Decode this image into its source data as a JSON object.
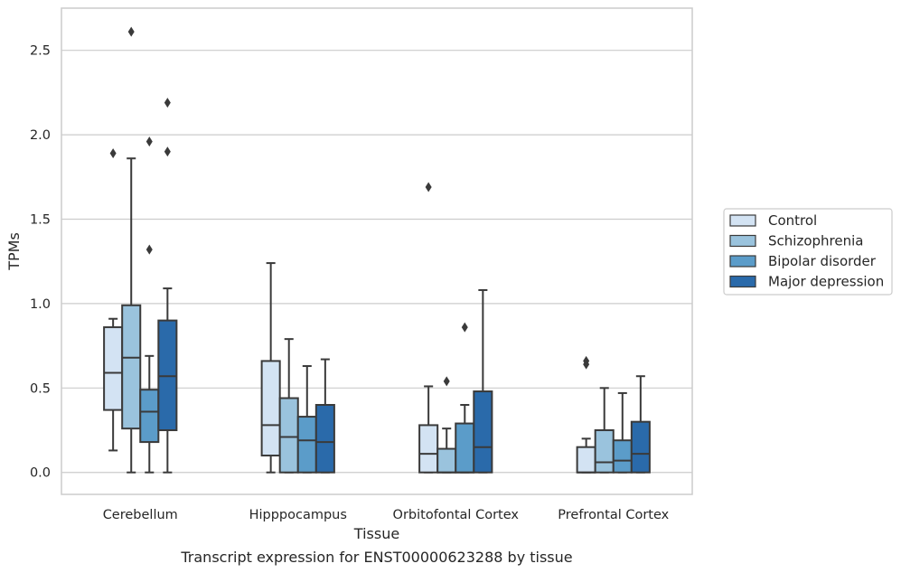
{
  "chart_data": {
    "type": "box",
    "title": "",
    "caption": "Transcript expression for ENST00000623288 by tissue",
    "xlabel": "Tissue",
    "ylabel": "TPMs",
    "ylim": [
      -0.13,
      2.75
    ],
    "yticks": [
      "0.0",
      "0.5",
      "1.0",
      "1.5",
      "2.0",
      "2.5"
    ],
    "grid": true,
    "legend_position": "right",
    "categories": [
      "Cerebellum",
      "Hipppocampus",
      "Orbitofontal Cortex",
      "Prefrontal Cortex"
    ],
    "series": [
      {
        "name": "Control",
        "color": "#d3e3f3",
        "boxes": [
          {
            "whisker_low": 0.13,
            "q1": 0.37,
            "median": 0.59,
            "q3": 0.86,
            "whisker_high": 0.91,
            "outliers": [
              1.89
            ]
          },
          {
            "whisker_low": 0.0,
            "q1": 0.1,
            "median": 0.28,
            "q3": 0.66,
            "whisker_high": 1.24,
            "outliers": []
          },
          {
            "whisker_low": 0.0,
            "q1": 0.0,
            "median": 0.11,
            "q3": 0.28,
            "whisker_high": 0.51,
            "outliers": [
              1.69
            ]
          },
          {
            "whisker_low": 0.0,
            "q1": 0.0,
            "median": 0.0,
            "q3": 0.15,
            "whisker_high": 0.2,
            "outliers": [
              0.64,
              0.66
            ]
          }
        ]
      },
      {
        "name": "Schizophrenia",
        "color": "#9ac3dd",
        "boxes": [
          {
            "whisker_low": 0.0,
            "q1": 0.26,
            "median": 0.68,
            "q3": 0.99,
            "whisker_high": 1.86,
            "outliers": [
              2.61
            ]
          },
          {
            "whisker_low": 0.0,
            "q1": 0.0,
            "median": 0.21,
            "q3": 0.44,
            "whisker_high": 0.79,
            "outliers": []
          },
          {
            "whisker_low": 0.0,
            "q1": 0.0,
            "median": 0.0,
            "q3": 0.14,
            "whisker_high": 0.26,
            "outliers": [
              0.54
            ]
          },
          {
            "whisker_low": 0.0,
            "q1": 0.0,
            "median": 0.06,
            "q3": 0.25,
            "whisker_high": 0.5,
            "outliers": []
          }
        ]
      },
      {
        "name": "Bipolar disorder",
        "color": "#5b9cc9",
        "boxes": [
          {
            "whisker_low": 0.0,
            "q1": 0.18,
            "median": 0.36,
            "q3": 0.49,
            "whisker_high": 0.69,
            "outliers": [
              1.32,
              1.96
            ]
          },
          {
            "whisker_low": 0.0,
            "q1": 0.0,
            "median": 0.19,
            "q3": 0.33,
            "whisker_high": 0.63,
            "outliers": []
          },
          {
            "whisker_low": 0.0,
            "q1": 0.0,
            "median": 0.0,
            "q3": 0.29,
            "whisker_high": 0.4,
            "outliers": [
              0.86
            ]
          },
          {
            "whisker_low": 0.0,
            "q1": 0.0,
            "median": 0.07,
            "q3": 0.19,
            "whisker_high": 0.47,
            "outliers": []
          }
        ]
      },
      {
        "name": "Major depression",
        "color": "#2a6aaa",
        "boxes": [
          {
            "whisker_low": 0.0,
            "q1": 0.25,
            "median": 0.57,
            "q3": 0.9,
            "whisker_high": 1.09,
            "outliers": [
              1.9,
              2.19
            ]
          },
          {
            "whisker_low": 0.0,
            "q1": 0.0,
            "median": 0.18,
            "q3": 0.4,
            "whisker_high": 0.67,
            "outliers": []
          },
          {
            "whisker_low": 0.0,
            "q1": 0.0,
            "median": 0.15,
            "q3": 0.48,
            "whisker_high": 1.08,
            "outliers": []
          },
          {
            "whisker_low": 0.0,
            "q1": 0.0,
            "median": 0.11,
            "q3": 0.3,
            "whisker_high": 0.57,
            "outliers": []
          }
        ]
      }
    ]
  }
}
